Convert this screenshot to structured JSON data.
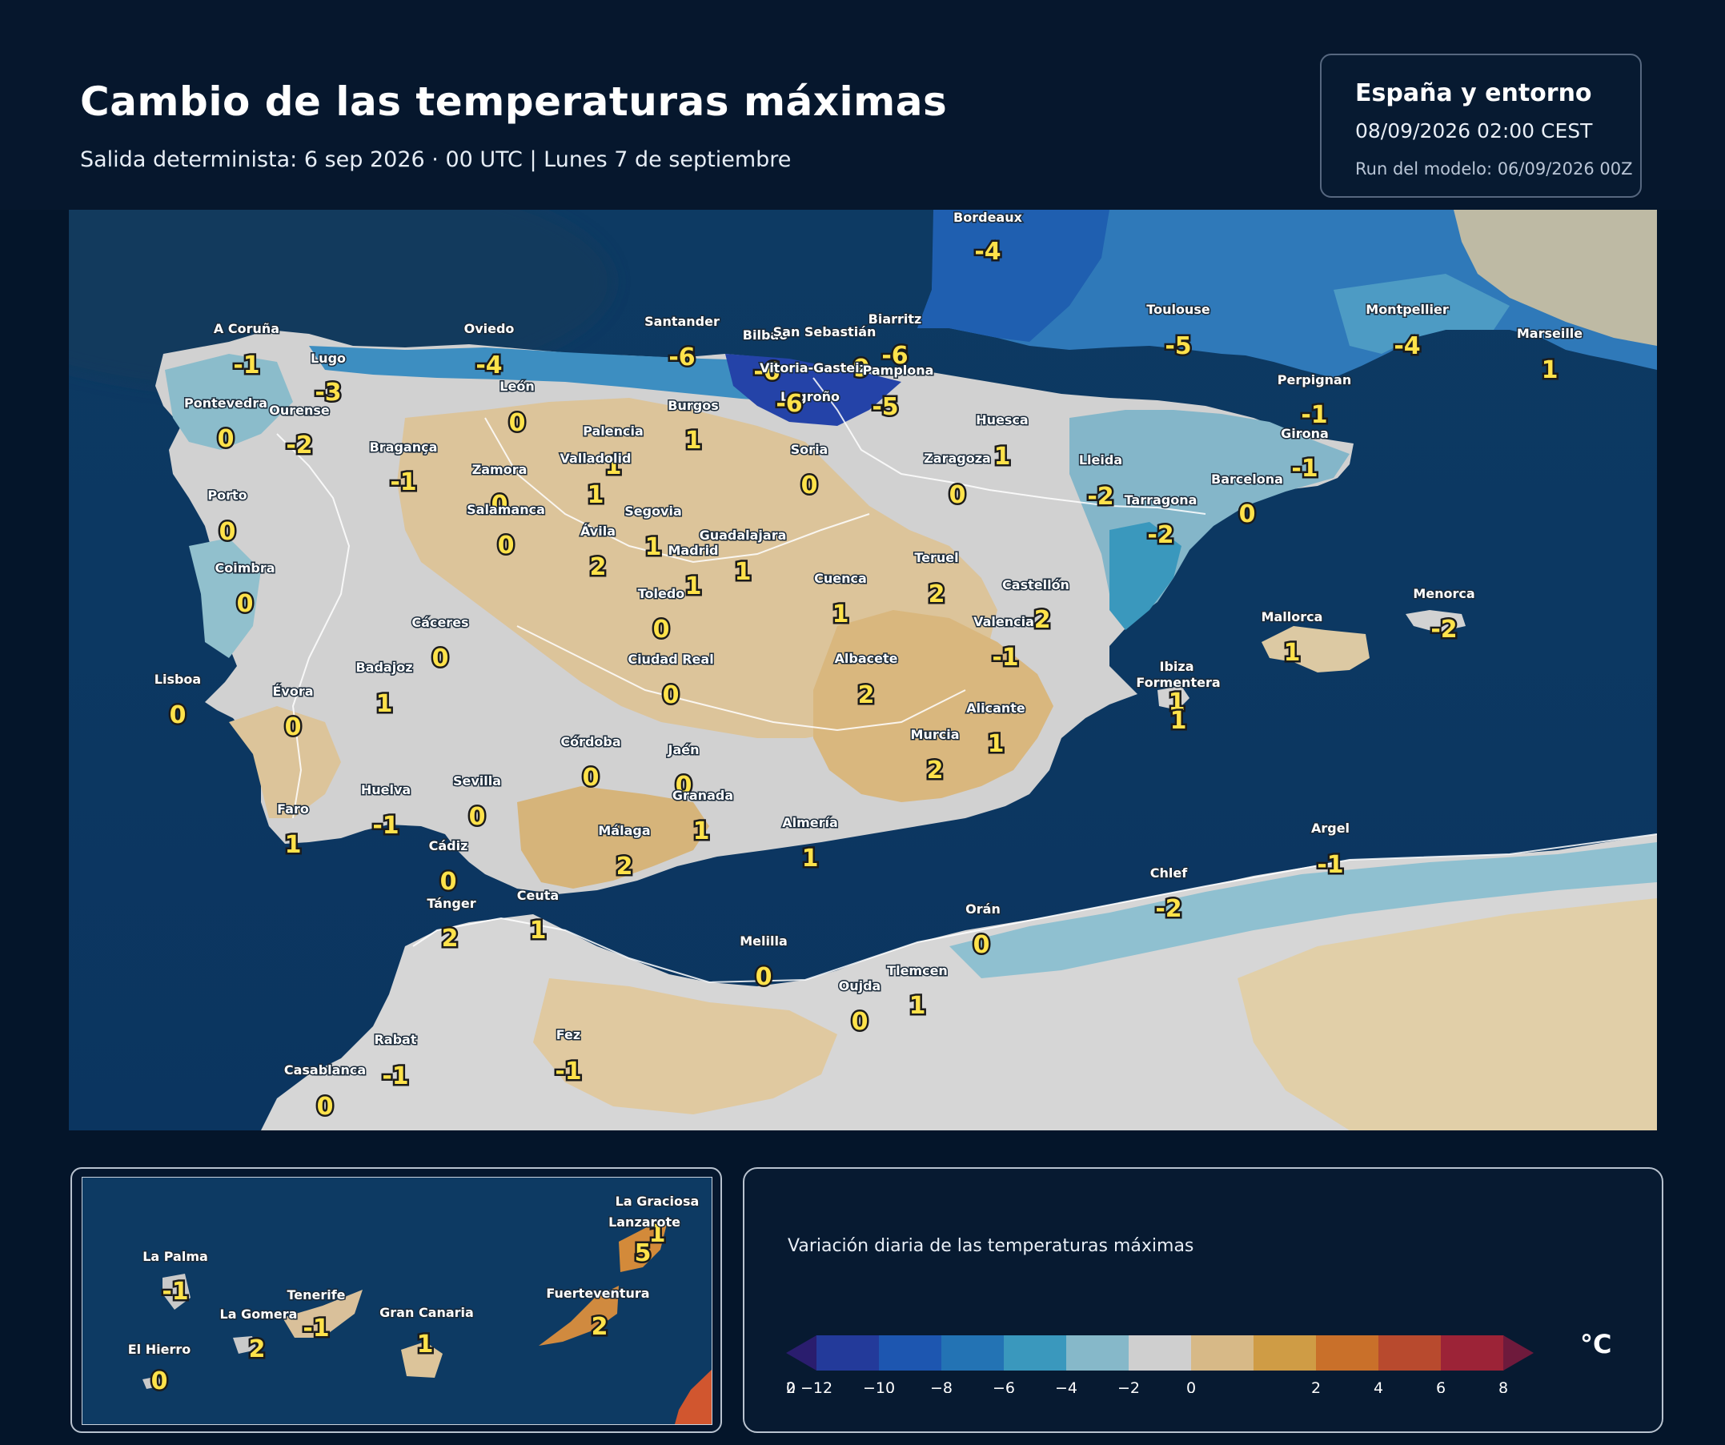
{
  "header": {
    "title": "Cambio de las temperaturas máximas",
    "subtitle": "Salida determinista: 6 sep 2026 · 00 UTC  |  Lunes 7 de septiembre"
  },
  "info": {
    "region": "España y entorno",
    "valid": "08/09/2026  02:00 CEST",
    "run": "Run del modelo: 06/09/2026 00Z"
  },
  "legend": {
    "title": "Variación diaria de las temperaturas máximas",
    "unit": "°C",
    "ticks": [
      "−12",
      "−10",
      "−8",
      "−6",
      "−4",
      "−2",
      "0",
      "2",
      "4",
      "6",
      "8",
      "10",
      "12"
    ],
    "colors": [
      "#2a1d6e",
      "#233a9a",
      "#1d56b0",
      "#2373b4",
      "#3a98bd",
      "#86b8c9",
      "#cfcfcf",
      "#d7b987",
      "#cf9c45",
      "#c9702a",
      "#b84a2e",
      "#9c2337",
      "#6e1a3c"
    ]
  },
  "map": {
    "cities": [
      {
        "name": "Bordeaux",
        "value": "-4"
      },
      {
        "name": "Biarritz",
        "value": "-6"
      },
      {
        "name": "Toulouse",
        "value": "-5"
      },
      {
        "name": "Montpellier",
        "value": "-4"
      },
      {
        "name": "Marseille",
        "value": "1"
      },
      {
        "name": "Perpignan",
        "value": "-1"
      },
      {
        "name": "Girona",
        "value": "-1"
      },
      {
        "name": "Barcelona",
        "value": "0"
      },
      {
        "name": "Tarragona",
        "value": "-2"
      },
      {
        "name": "Lleida",
        "value": "-2"
      },
      {
        "name": "Huesca",
        "value": "1"
      },
      {
        "name": "Zaragoza",
        "value": "0"
      },
      {
        "name": "A Coruña",
        "value": "-1"
      },
      {
        "name": "Lugo",
        "value": "-3"
      },
      {
        "name": "Oviedo",
        "value": "-4"
      },
      {
        "name": "Santander",
        "value": "-6"
      },
      {
        "name": "Bilbao",
        "value": "-6"
      },
      {
        "name": "San Sebastián",
        "value": "-9"
      },
      {
        "name": "Vitoria-Gasteiz",
        "value": ""
      },
      {
        "name": "Pamplona",
        "value": "-5"
      },
      {
        "name": "Logroño",
        "value": "-6"
      },
      {
        "name": "Burgos",
        "value": "1"
      },
      {
        "name": "Soria",
        "value": "0"
      },
      {
        "name": "León",
        "value": "0"
      },
      {
        "name": "Pontevedra",
        "value": "0"
      },
      {
        "name": "Ourense",
        "value": "-2"
      },
      {
        "name": "Bragança",
        "value": "-1"
      },
      {
        "name": "Palencia",
        "value": "1"
      },
      {
        "name": "Valladolid",
        "value": "1"
      },
      {
        "name": "Zamora",
        "value": "0"
      },
      {
        "name": "Porto",
        "value": "0"
      },
      {
        "name": "Salamanca",
        "value": "0"
      },
      {
        "name": "Segovia",
        "value": "1"
      },
      {
        "name": "Ávila",
        "value": "2"
      },
      {
        "name": "Guadalajara",
        "value": "1"
      },
      {
        "name": "Madrid",
        "value": "1"
      },
      {
        "name": "Coimbra",
        "value": "0"
      },
      {
        "name": "Toledo",
        "value": "0"
      },
      {
        "name": "Cuenca",
        "value": "1"
      },
      {
        "name": "Teruel",
        "value": "2"
      },
      {
        "name": "Castellón",
        "value": "-2"
      },
      {
        "name": "Valencia",
        "value": "-1"
      },
      {
        "name": "Cáceres",
        "value": "0"
      },
      {
        "name": "Badajoz",
        "value": "1"
      },
      {
        "name": "Lisboa",
        "value": "0"
      },
      {
        "name": "Évora",
        "value": "0"
      },
      {
        "name": "Ciudad Real",
        "value": "0"
      },
      {
        "name": "Albacete",
        "value": "2"
      },
      {
        "name": "Alicante",
        "value": "1"
      },
      {
        "name": "Murcia",
        "value": "2"
      },
      {
        "name": "Córdoba",
        "value": "0"
      },
      {
        "name": "Jaén",
        "value": "0"
      },
      {
        "name": "Granada",
        "value": "1"
      },
      {
        "name": "Sevilla",
        "value": "0"
      },
      {
        "name": "Huelva",
        "value": "-1"
      },
      {
        "name": "Faro",
        "value": "1"
      },
      {
        "name": "Cádiz",
        "value": "0"
      },
      {
        "name": "Málaga",
        "value": "2"
      },
      {
        "name": "Almería",
        "value": "1"
      },
      {
        "name": "Tánger",
        "value": "2"
      },
      {
        "name": "Ceuta",
        "value": "1"
      },
      {
        "name": "Melilla",
        "value": "0"
      },
      {
        "name": "Orán",
        "value": "0"
      },
      {
        "name": "Tlemcen",
        "value": "1"
      },
      {
        "name": "Oujda",
        "value": "0"
      },
      {
        "name": "Chlef",
        "value": "-2"
      },
      {
        "name": "Argel",
        "value": "-1"
      },
      {
        "name": "Mallorca",
        "value": "1"
      },
      {
        "name": "Menorca",
        "value": "-2"
      },
      {
        "name": "Ibiza",
        "value": "1"
      },
      {
        "name": "Formentera",
        "value": "1"
      },
      {
        "name": "Rabat",
        "value": "-1"
      },
      {
        "name": "Casablanca",
        "value": "0"
      },
      {
        "name": "Fez",
        "value": "-1"
      }
    ]
  },
  "inset": {
    "islands": [
      {
        "name": "La Graciosa",
        "value": "1"
      },
      {
        "name": "Lanzarote",
        "value": "5"
      },
      {
        "name": "La Palma",
        "value": "-1"
      },
      {
        "name": "Tenerife",
        "value": "-1"
      },
      {
        "name": "La Gomera",
        "value": "2"
      },
      {
        "name": "Gran Canaria",
        "value": "1"
      },
      {
        "name": "Fuerteventura",
        "value": "2"
      },
      {
        "name": "El Hierro",
        "value": "0"
      }
    ]
  }
}
